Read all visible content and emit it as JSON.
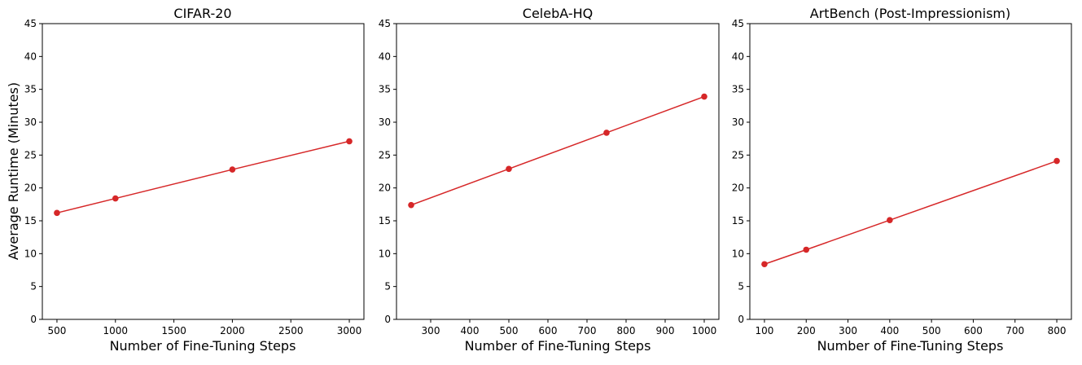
{
  "figure": {
    "ylabel": "Average Runtime (Minutes)"
  },
  "colors": {
    "series": "#d62728"
  },
  "chart_data": [
    {
      "type": "line",
      "title": "CIFAR-20",
      "xlabel": "Number of Fine-Tuning Steps",
      "ylabel": "Average Runtime (Minutes)",
      "x": [
        500,
        1000,
        2000,
        3000
      ],
      "values": [
        16.2,
        18.4,
        22.8,
        27.1
      ],
      "xlim": [
        375,
        3125
      ],
      "ylim": [
        0,
        45
      ],
      "xticks": [
        500,
        1000,
        1500,
        2000,
        2500,
        3000
      ],
      "yticks": [
        0,
        5,
        10,
        15,
        20,
        25,
        30,
        35,
        40,
        45
      ],
      "marker": "circle",
      "grid": false
    },
    {
      "type": "line",
      "title": "CelebA-HQ",
      "xlabel": "Number of Fine-Tuning Steps",
      "x": [
        250,
        500,
        750,
        1000
      ],
      "values": [
        17.4,
        22.9,
        28.4,
        33.9
      ],
      "xlim": [
        212.5,
        1037.5
      ],
      "ylim": [
        0,
        45
      ],
      "xticks": [
        300,
        400,
        500,
        600,
        700,
        800,
        900,
        1000
      ],
      "yticks": [
        0,
        5,
        10,
        15,
        20,
        25,
        30,
        35,
        40,
        45
      ],
      "marker": "circle",
      "grid": false
    },
    {
      "type": "line",
      "title": "ArtBench (Post-Impressionism)",
      "xlabel": "Number of Fine-Tuning Steps",
      "x": [
        100,
        200,
        400,
        800
      ],
      "values": [
        8.4,
        10.6,
        15.1,
        24.1
      ],
      "xlim": [
        65,
        835
      ],
      "ylim": [
        0,
        45
      ],
      "xticks": [
        100,
        200,
        300,
        400,
        500,
        600,
        700,
        800
      ],
      "yticks": [
        0,
        5,
        10,
        15,
        20,
        25,
        30,
        35,
        40,
        45
      ],
      "marker": "circle",
      "grid": false
    }
  ]
}
